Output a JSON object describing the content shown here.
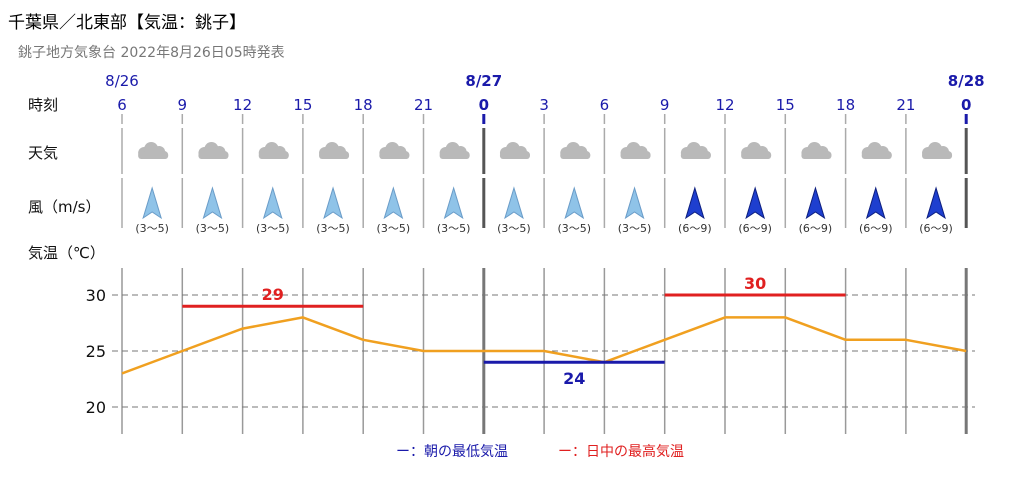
{
  "header": {
    "title": "千葉県／北東部【気温：銚子】",
    "subtitle": "銚子地方気象台 2022年8月26日05時発表"
  },
  "row_labels": {
    "time": "時刻",
    "weather": "天気",
    "wind": "風（m/s）",
    "temp": "気温（℃）"
  },
  "dates": [
    {
      "label": "8/26",
      "at_hour_index": 0,
      "bold": false
    },
    {
      "label": "8/27",
      "at_hour_index": 6,
      "bold": true
    },
    {
      "label": "8/28",
      "at_hour_index": 14,
      "bold": true
    }
  ],
  "weather_icon": "cloudy-icon",
  "wind_colors": {
    "light": "#8fc3e8",
    "strong": "#1e3fcf"
  },
  "chart_data": {
    "type": "line",
    "x": [
      "6",
      "9",
      "12",
      "15",
      "18",
      "21",
      "0",
      "3",
      "6",
      "9",
      "12",
      "15",
      "18",
      "21",
      "0"
    ],
    "bold_ticks": [
      6,
      14
    ],
    "series": [
      {
        "values": [
          23,
          25,
          27,
          28,
          26,
          25,
          25,
          25,
          24,
          26,
          28,
          28,
          26,
          26,
          25
        ],
        "color": "#f0a020"
      }
    ],
    "weather": [
      "曇",
      "曇",
      "曇",
      "曇",
      "曇",
      "曇",
      "曇",
      "曇",
      "曇",
      "曇",
      "曇",
      "曇",
      "曇",
      "曇"
    ],
    "wind": [
      {
        "range": "(3〜5)",
        "level": "light"
      },
      {
        "range": "(3〜5)",
        "level": "light"
      },
      {
        "range": "(3〜5)",
        "level": "light"
      },
      {
        "range": "(3〜5)",
        "level": "light"
      },
      {
        "range": "(3〜5)",
        "level": "light"
      },
      {
        "range": "(3〜5)",
        "level": "light"
      },
      {
        "range": "(3〜5)",
        "level": "light"
      },
      {
        "range": "(3〜5)",
        "level": "light"
      },
      {
        "range": "(3〜5)",
        "level": "light"
      },
      {
        "range": "(6〜9)",
        "level": "strong"
      },
      {
        "range": "(6〜9)",
        "level": "strong"
      },
      {
        "range": "(6〜9)",
        "level": "strong"
      },
      {
        "range": "(6〜9)",
        "level": "strong"
      },
      {
        "range": "(6〜9)",
        "level": "strong"
      }
    ],
    "max_temps": [
      {
        "value": 29,
        "from_index": 1,
        "to_index": 4,
        "color": "#e02020"
      },
      {
        "value": 30,
        "from_index": 9,
        "to_index": 12,
        "color": "#e02020"
      }
    ],
    "min_temps": [
      {
        "value": 24,
        "from_index": 6,
        "to_index": 9,
        "color": "#1a1aaa"
      }
    ],
    "y_ticks": [
      20,
      25,
      30
    ],
    "ylim": [
      18,
      32
    ],
    "grid": true,
    "legend": {
      "position": "bottom",
      "items": [
        {
          "label": "ー：朝の最低気温",
          "color": "#1a1aaa"
        },
        {
          "label": "ー：日中の最高気温",
          "color": "#e02020"
        }
      ]
    }
  }
}
